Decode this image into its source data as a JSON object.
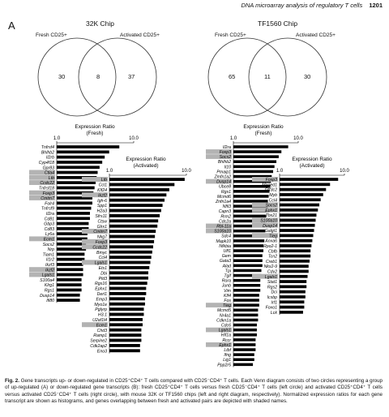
{
  "header": {
    "running_title": "DNA microarray analysis of regulatory T cells",
    "page": "1201"
  },
  "panel_letter": "A",
  "venns": [
    {
      "chip": "32K Chip",
      "left_label": "Fresh CD25+",
      "right_label": "Activated CD25+",
      "left_only": "30",
      "overlap": "8",
      "right_only": "37"
    },
    {
      "chip": "TF1560 Chip",
      "left_label": "Fresh CD25+",
      "right_label": "Activated CD25+",
      "left_only": "65",
      "overlap": "11",
      "right_only": "30"
    }
  ],
  "chart_data": [
    {
      "type": "bar",
      "title": "Expression Ratio",
      "subtitle": "(Fresh)",
      "log_scale": true,
      "xlim": [
        1,
        10
      ],
      "tick_labels": [
        "1.0",
        "10.0"
      ],
      "categories": [
        "Tnfrsf4",
        "Bhlhb2",
        "Il2rb",
        "Cyp4f18",
        "Gpr83",
        "Ctla4",
        "Ltb",
        "Ccdc22",
        "Tnfrsf18",
        "Foxp3",
        "Cmtm7",
        "Folr4",
        "Tnfrsf9",
        "Il2ra",
        "Cd81",
        "Gbp3",
        "Cd83",
        "Ly6a",
        "Ecm1",
        "Socs2",
        "Nrp",
        "Tiam1",
        "Il1r2",
        "Ikzf3",
        "Ikzf2",
        "Lgals1",
        "S100a4",
        "Klrg1",
        "Rgs1",
        "Dusp14",
        "Ifi80"
      ],
      "highlighted": [
        "Ctla4",
        "Ltb",
        "Ccdc22",
        "Foxp3",
        "Cmtm7",
        "Ecm1",
        "Ikzf2",
        "Lgals1"
      ],
      "values": [
        6.5,
        4.8,
        4.2,
        3.9,
        3.6,
        3.4,
        3.3,
        3.2,
        3.1,
        3.0,
        2.9,
        2.9,
        2.8,
        2.7,
        2.7,
        2.6,
        2.6,
        2.5,
        2.5,
        2.4,
        2.4,
        2.3,
        2.3,
        2.2,
        2.2,
        2.2,
        2.1,
        2.1,
        2.1,
        2.0,
        2.0
      ]
    },
    {
      "type": "bar",
      "title": "Expression Ratio",
      "subtitle": "(Activated)",
      "log_scale": true,
      "xlim": [
        1,
        10
      ],
      "tick_labels": [
        "1.0",
        "10.0"
      ],
      "categories": [
        "Ltb",
        "Ccl1",
        "Klf24",
        "Ikzf2",
        "Igh-6",
        "Spp1",
        "H2a3",
        "Sfrs11",
        "Ctsw",
        "Glrx1",
        "Cmtm7",
        "Nkg7",
        "Foxp3",
        "Ccdc22",
        "Bmyc",
        "Ccl4",
        "Lgals1",
        "Ets1",
        "Dbi",
        "Pld3",
        "Rgs16",
        "Ephx1",
        "Derl1",
        "Emp3",
        "Myo1e",
        "Pglyrp",
        "H3.1",
        "U2af1l4",
        "Ecm1",
        "Chd3",
        "Ramp1",
        "Serpine2",
        "Cdk2ap2",
        "Eno3"
      ],
      "highlighted": [
        "Ltb",
        "Ikzf2",
        "Cmtm7",
        "Foxp3",
        "Ccdc22",
        "Lgals1",
        "Ecm1"
      ],
      "values": [
        9.5,
        7.0,
        6.0,
        5.5,
        5.2,
        4.9,
        4.7,
        4.5,
        4.3,
        4.2,
        4.0,
        3.9,
        3.8,
        3.7,
        3.6,
        3.5,
        3.4,
        3.3,
        3.2,
        3.2,
        3.1,
        3.0,
        3.0,
        2.9,
        2.9,
        2.8,
        2.8,
        2.7,
        2.7,
        2.6,
        2.6,
        2.6,
        2.5,
        2.5
      ]
    },
    {
      "type": "bar",
      "title": "Expression Ratio",
      "subtitle": "(Fresh)",
      "log_scale": true,
      "xlim": [
        1,
        10
      ],
      "tick_labels": [
        "1.0",
        "10.0"
      ],
      "categories": [
        "Il2ra",
        "Foxp3",
        "Socs2",
        "Bhlhb2",
        "Il10",
        "Pmaip1",
        "Zmfn1a2",
        "Dusp14",
        "Ubce8",
        "Rgs1",
        "Mcmd6",
        "Znfn1a4",
        "Nfil3",
        "Capn3",
        "Rrm2",
        "Cdc2a",
        "Rbl-11a",
        "S100a10",
        "Sdc4",
        "Mapk10",
        "Nfkbia",
        "Uff1",
        "Gem",
        "Gata3",
        "Alad",
        "Tpi",
        "Tgif",
        "Rora",
        "Junb",
        "Vim",
        "Klf4",
        "Fos",
        "Tieg",
        "Mcmd5",
        "Nr4a1",
        "Cdkn1a",
        "Cdc6",
        "Lgals1",
        "Hif1a",
        "Rccr",
        "Ephx1",
        "Ltbf",
        "Ifng",
        "Lig1",
        "Ppp2r5"
      ],
      "highlighted": [
        "Foxp3",
        "Socs2",
        "Dusp14",
        "Rbl-11a",
        "S100a10",
        "Tieg",
        "Lgals1",
        "Ephx1"
      ],
      "values": [
        7.0,
        5.5,
        5.0,
        4.6,
        4.3,
        4.1,
        3.9,
        3.8,
        3.7,
        3.6,
        3.5,
        3.4,
        3.4,
        3.3,
        3.2,
        3.2,
        3.1,
        3.1,
        3.0,
        3.0,
        2.9,
        2.9,
        2.8,
        2.8,
        2.8,
        2.7,
        2.7,
        2.6,
        2.6,
        2.6,
        2.5,
        2.5,
        2.5,
        2.4,
        2.4,
        2.4,
        2.3,
        2.3,
        2.3,
        2.2,
        2.2,
        2.2,
        2.1,
        2.1,
        2.0
      ]
    },
    {
      "type": "bar",
      "title": "Expression Ratio",
      "subtitle": "(Activated)",
      "log_scale": true,
      "xlim": [
        1,
        10
      ],
      "tick_labels": [
        "1.0",
        "10.0"
      ],
      "categories": [
        "Foxp3",
        "Maged1",
        "Gtf3c2",
        "Myb",
        "Ccl4",
        "Socs2",
        "Ephx1",
        "Tbx21",
        "S100a10",
        "Dusp14",
        "Galgt1",
        "Tieg",
        "Anxa6",
        "Rpo2-1",
        "Cbfb",
        "Tcn2",
        "Creb1",
        "Nkx2-9",
        "Cdv2",
        "Lgals1",
        "Stat1",
        "Rgs2",
        "Dci",
        "Icsbp",
        "Irf1",
        "Foxo1",
        "Lck"
      ],
      "highlighted": [
        "Foxp3",
        "Socs2",
        "Ephx1",
        "S100a10",
        "Dusp14",
        "Tieg",
        "Lgals1"
      ],
      "values": [
        8.0,
        6.0,
        5.2,
        4.7,
        4.3,
        4.1,
        3.9,
        3.7,
        3.6,
        3.5,
        3.4,
        3.3,
        3.2,
        3.1,
        3.0,
        3.0,
        2.9,
        2.8,
        2.8,
        2.7,
        2.6,
        2.6,
        2.5,
        2.5,
        2.4,
        2.4,
        2.3
      ]
    }
  ],
  "caption": {
    "label": "Fig. 2.",
    "text": "Gene transcripts up- or down-regulated in CD25⁺CD4⁺ T cells compared with CD25⁻CD4⁺ T cells. Each Venn diagram consists of two circles representing a group of up-regulated (A) or down-regulated gene transcripts (B): fresh CD25⁺CD4⁺ T cells versus fresh CD25⁻CD4⁺ T cells (left circle) and activated CD25⁺CD4⁺ T cells versus activated CD25⁻CD4⁺ T cells (right circle), with mouse 32K or TF1560 chips (left and right diagram, respectively). Normalized expression ratios for each gene transcript are shown as histograms, and genes overlapping between fresh and activated pairs are depicted with shaded names."
  },
  "colors": {
    "bar": "#000000",
    "highlight": "#b3b3b3",
    "circle": "#333333"
  }
}
